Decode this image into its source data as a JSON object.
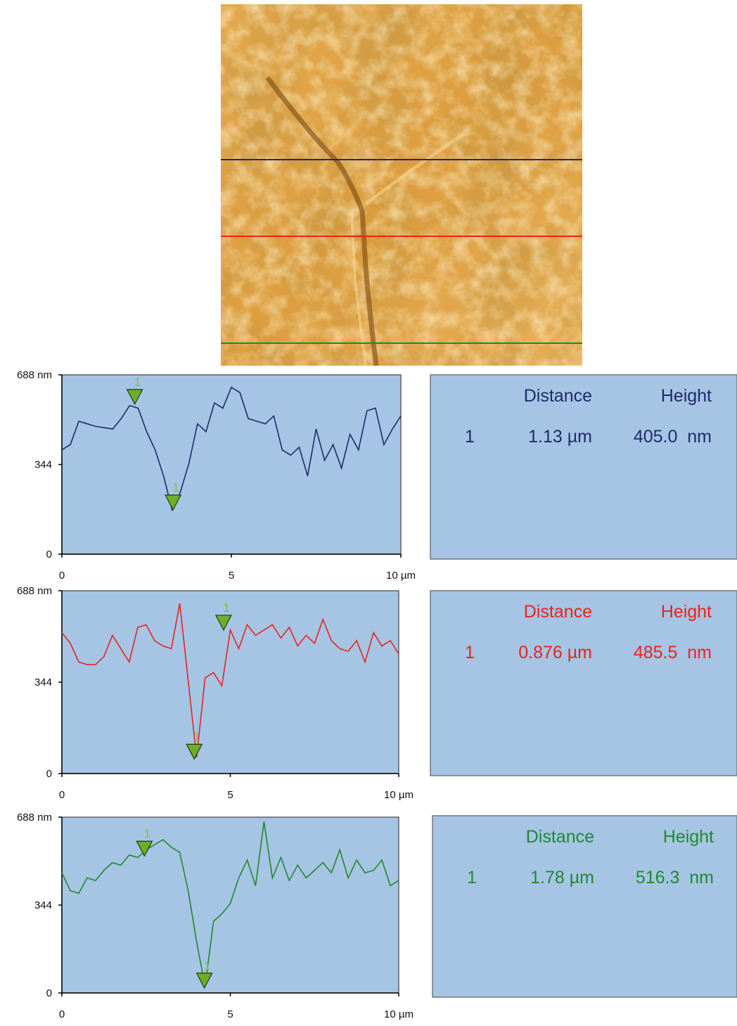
{
  "chart_data": [
    {
      "type": "line",
      "xlim": [
        0,
        10
      ],
      "ylim": [
        0,
        688
      ],
      "xticks": [
        0,
        5,
        {
          "value": 10,
          "label": "10 µm"
        }
      ],
      "yticks": [
        0,
        344,
        {
          "value": 688,
          "label": "688 nm"
        }
      ],
      "x": [
        0,
        0.25,
        0.5,
        0.75,
        1,
        1.25,
        1.5,
        1.75,
        2,
        2.25,
        2.5,
        2.75,
        3,
        3.25,
        3.5,
        3.75,
        4,
        4.25,
        4.5,
        4.75,
        5,
        5.25,
        5.5,
        5.75,
        6,
        6.25,
        6.5,
        6.75,
        7,
        7.25,
        7.5,
        7.75,
        8,
        8.25,
        8.5,
        8.75,
        9,
        9.25,
        9.5,
        9.75,
        10
      ],
      "series": [
        {
          "color": "#1f2a6b",
          "values": [
            400,
            420,
            510,
            500,
            490,
            485,
            480,
            520,
            570,
            560,
            470,
            400,
            300,
            170,
            240,
            350,
            500,
            470,
            580,
            560,
            640,
            620,
            520,
            510,
            500,
            530,
            400,
            380,
            410,
            300,
            480,
            360,
            420,
            330,
            460,
            400,
            550,
            560,
            420,
            480,
            530
          ]
        }
      ],
      "markers": [
        {
          "x": 2.15,
          "y": 575,
          "label": "1"
        },
        {
          "x": 3.28,
          "y": 170,
          "label": "1"
        }
      ],
      "table": {
        "columns": [
          "Distance",
          "Height"
        ],
        "rows": [
          [
            "1",
            "1.13 µm",
            "405.0  nm"
          ]
        ]
      }
    },
    {
      "type": "line",
      "xlim": [
        0,
        10
      ],
      "ylim": [
        0,
        688
      ],
      "xticks": [
        0,
        5,
        {
          "value": 10,
          "label": "10 µm"
        }
      ],
      "yticks": [
        0,
        344,
        {
          "value": 688,
          "label": "688 nm"
        }
      ],
      "x": [
        0,
        0.25,
        0.5,
        0.75,
        1,
        1.25,
        1.5,
        1.75,
        2,
        2.25,
        2.5,
        2.75,
        3,
        3.25,
        3.5,
        3.75,
        4,
        4.25,
        4.5,
        4.75,
        5,
        5.25,
        5.5,
        5.75,
        6,
        6.25,
        6.5,
        6.75,
        7,
        7.25,
        7.5,
        7.75,
        8,
        8.25,
        8.5,
        8.75,
        9,
        9.25,
        9.5,
        9.75,
        10
      ],
      "series": [
        {
          "color": "#e8231f",
          "values": [
            530,
            490,
            420,
            410,
            410,
            440,
            520,
            470,
            420,
            550,
            560,
            500,
            480,
            470,
            640,
            350,
            60,
            360,
            380,
            330,
            540,
            470,
            560,
            520,
            540,
            560,
            510,
            550,
            480,
            520,
            490,
            580,
            500,
            470,
            460,
            500,
            420,
            530,
            480,
            500,
            450
          ]
        }
      ],
      "markers": [
        {
          "x": 4.8,
          "y": 540,
          "label": "1"
        },
        {
          "x": 3.93,
          "y": 54.5,
          "label": "1"
        }
      ],
      "table": {
        "columns": [
          "Distance",
          "Height"
        ],
        "rows": [
          [
            "1",
            "0.876 µm",
            "485.5  nm"
          ]
        ]
      }
    },
    {
      "type": "line",
      "xlim": [
        0,
        10
      ],
      "ylim": [
        0,
        688
      ],
      "xticks": [
        0,
        5,
        {
          "value": 10,
          "label": "10 µm"
        }
      ],
      "yticks": [
        0,
        344,
        {
          "value": 688,
          "label": "688 nm"
        }
      ],
      "x": [
        0,
        0.25,
        0.5,
        0.75,
        1,
        1.25,
        1.5,
        1.75,
        2,
        2.25,
        2.5,
        2.75,
        3,
        3.25,
        3.5,
        3.75,
        4,
        4.25,
        4.5,
        4.75,
        5,
        5.25,
        5.5,
        5.75,
        6,
        6.25,
        6.5,
        6.75,
        7,
        7.25,
        7.5,
        7.75,
        8,
        8.25,
        8.5,
        8.75,
        9,
        9.25,
        9.5,
        9.75,
        10
      ],
      "series": [
        {
          "color": "#1e8a2e",
          "values": [
            470,
            400,
            390,
            450,
            440,
            480,
            510,
            500,
            540,
            530,
            560,
            580,
            600,
            570,
            550,
            400,
            200,
            25,
            280,
            310,
            350,
            450,
            520,
            420,
            670,
            450,
            530,
            440,
            500,
            450,
            480,
            510,
            470,
            560,
            450,
            520,
            470,
            480,
            520,
            420,
            440
          ]
        }
      ],
      "markers": [
        {
          "x": 2.45,
          "y": 536,
          "label": "1"
        },
        {
          "x": 4.23,
          "y": 19.7,
          "label": "1"
        }
      ],
      "table": {
        "columns": [
          "Distance",
          "Height"
        ],
        "rows": [
          [
            "1",
            "1.78 µm",
            "516.3  nm"
          ]
        ]
      }
    }
  ]
}
